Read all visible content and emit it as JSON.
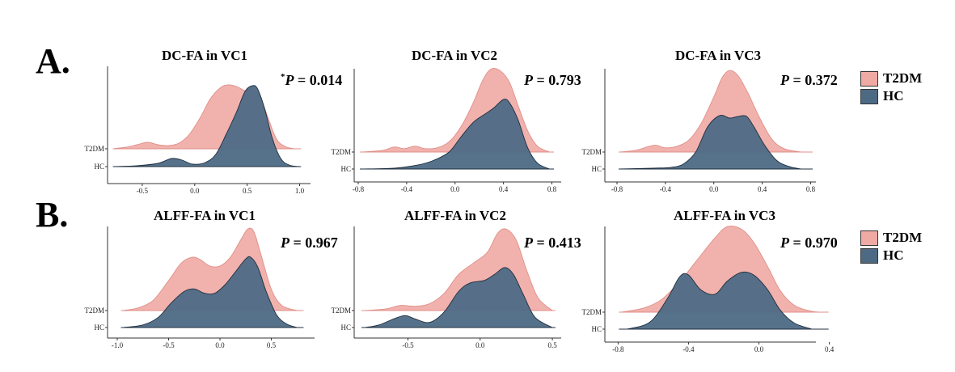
{
  "sections": [
    {
      "label": "A."
    },
    {
      "label": "B."
    }
  ],
  "legend": [
    {
      "label": "T2DM",
      "color": "#efaaa4"
    },
    {
      "label": "HC",
      "color": "#4d6a85"
    }
  ],
  "colors": {
    "t2dm": "#efaaa4",
    "hc": "#4d6a85"
  },
  "chart_data": [
    {
      "type": "ridgeline",
      "title": "DC-FA in VC1",
      "p_prefix": "*",
      "p_label": "P",
      "p_value": "= 0.014",
      "xlim": [
        -0.8,
        1.05
      ],
      "ticks": [
        -0.5,
        0.0,
        0.5,
        1.0
      ],
      "tick_labels": [
        "-0.5",
        "0.0",
        "0.5",
        "1.0"
      ],
      "y_labels": [
        "T2DM",
        "HC"
      ],
      "series": [
        {
          "name": "T2DM",
          "points": [
            [
              -0.78,
              0
            ],
            [
              -0.65,
              0.02
            ],
            [
              -0.55,
              0.05
            ],
            [
              -0.45,
              0.08
            ],
            [
              -0.35,
              0.05
            ],
            [
              -0.25,
              0.04
            ],
            [
              -0.15,
              0.07
            ],
            [
              -0.05,
              0.18
            ],
            [
              0.05,
              0.38
            ],
            [
              0.15,
              0.62
            ],
            [
              0.25,
              0.76
            ],
            [
              0.32,
              0.79
            ],
            [
              0.4,
              0.77
            ],
            [
              0.48,
              0.72
            ],
            [
              0.55,
              0.74
            ],
            [
              0.62,
              0.66
            ],
            [
              0.7,
              0.38
            ],
            [
              0.78,
              0.12
            ],
            [
              0.86,
              0.03
            ],
            [
              0.95,
              0
            ]
          ]
        },
        {
          "name": "HC",
          "points": [
            [
              -0.78,
              0
            ],
            [
              -0.55,
              0.01
            ],
            [
              -0.35,
              0.04
            ],
            [
              -0.22,
              0.1
            ],
            [
              -0.12,
              0.08
            ],
            [
              -0.02,
              0.03
            ],
            [
              0.1,
              0.05
            ],
            [
              0.2,
              0.15
            ],
            [
              0.3,
              0.4
            ],
            [
              0.4,
              0.68
            ],
            [
              0.48,
              0.93
            ],
            [
              0.55,
              1.0
            ],
            [
              0.6,
              0.96
            ],
            [
              0.67,
              0.7
            ],
            [
              0.74,
              0.35
            ],
            [
              0.82,
              0.1
            ],
            [
              0.9,
              0.02
            ],
            [
              1.0,
              0
            ]
          ]
        }
      ]
    },
    {
      "type": "ridgeline",
      "title": "DC-FA in VC2",
      "p_prefix": "",
      "p_label": "P",
      "p_value": "= 0.793",
      "xlim": [
        -0.82,
        0.85
      ],
      "ticks": [
        -0.8,
        -0.4,
        0.0,
        0.4,
        0.8
      ],
      "tick_labels": [
        "-0.8",
        "-0.4",
        "0.0",
        "0.4",
        "0.8"
      ],
      "y_labels": [
        "T2DM",
        "HC"
      ],
      "series": [
        {
          "name": "T2DM",
          "points": [
            [
              -0.78,
              0
            ],
            [
              -0.6,
              0.02
            ],
            [
              -0.5,
              0.06
            ],
            [
              -0.42,
              0.04
            ],
            [
              -0.33,
              0.07
            ],
            [
              -0.25,
              0.04
            ],
            [
              -0.15,
              0.05
            ],
            [
              -0.05,
              0.12
            ],
            [
              0.05,
              0.3
            ],
            [
              0.15,
              0.58
            ],
            [
              0.23,
              0.85
            ],
            [
              0.3,
              0.98
            ],
            [
              0.38,
              0.95
            ],
            [
              0.45,
              0.82
            ],
            [
              0.52,
              0.55
            ],
            [
              0.6,
              0.25
            ],
            [
              0.68,
              0.07
            ],
            [
              0.78,
              0
            ]
          ]
        },
        {
          "name": "HC",
          "points": [
            [
              -0.78,
              0
            ],
            [
              -0.5,
              0.01
            ],
            [
              -0.3,
              0.05
            ],
            [
              -0.18,
              0.1
            ],
            [
              -0.05,
              0.2
            ],
            [
              0.05,
              0.38
            ],
            [
              0.15,
              0.55
            ],
            [
              0.25,
              0.65
            ],
            [
              0.32,
              0.72
            ],
            [
              0.4,
              0.82
            ],
            [
              0.45,
              0.78
            ],
            [
              0.52,
              0.58
            ],
            [
              0.6,
              0.25
            ],
            [
              0.68,
              0.07
            ],
            [
              0.78,
              0
            ]
          ]
        }
      ]
    },
    {
      "type": "ridgeline",
      "title": "DC-FA in VC3",
      "p_prefix": "",
      "p_label": "P",
      "p_value": "= 0.372",
      "xlim": [
        -0.82,
        0.85
      ],
      "ticks": [
        -0.8,
        -0.4,
        0.0,
        0.4,
        0.8
      ],
      "tick_labels": [
        "-0.8",
        "-0.4",
        "0.0",
        "0.4",
        "0.8"
      ],
      "y_labels": [
        "T2DM",
        "HC"
      ],
      "series": [
        {
          "name": "T2DM",
          "points": [
            [
              -0.78,
              0
            ],
            [
              -0.65,
              0.02
            ],
            [
              -0.55,
              0.06
            ],
            [
              -0.48,
              0.08
            ],
            [
              -0.4,
              0.05
            ],
            [
              -0.3,
              0.07
            ],
            [
              -0.2,
              0.15
            ],
            [
              -0.1,
              0.35
            ],
            [
              0.0,
              0.65
            ],
            [
              0.07,
              0.88
            ],
            [
              0.13,
              0.96
            ],
            [
              0.2,
              0.9
            ],
            [
              0.28,
              0.7
            ],
            [
              0.38,
              0.4
            ],
            [
              0.48,
              0.15
            ],
            [
              0.58,
              0.04
            ],
            [
              0.72,
              0
            ]
          ]
        },
        {
          "name": "HC",
          "points": [
            [
              -0.78,
              0
            ],
            [
              -0.5,
              0.01
            ],
            [
              -0.35,
              0.02
            ],
            [
              -0.25,
              0.06
            ],
            [
              -0.15,
              0.2
            ],
            [
              -0.05,
              0.5
            ],
            [
              0.05,
              0.63
            ],
            [
              0.13,
              0.6
            ],
            [
              0.2,
              0.62
            ],
            [
              0.27,
              0.62
            ],
            [
              0.33,
              0.5
            ],
            [
              0.42,
              0.28
            ],
            [
              0.52,
              0.1
            ],
            [
              0.62,
              0.03
            ],
            [
              0.72,
              0
            ]
          ]
        }
      ]
    },
    {
      "type": "ridgeline",
      "title": "ALFF-FA in VC1",
      "p_prefix": "",
      "p_label": "P",
      "p_value": "= 0.967",
      "xlim": [
        -1.0,
        0.85
      ],
      "ticks": [
        -1.0,
        -0.5,
        0.0,
        0.5
      ],
      "tick_labels": [
        "-1.0",
        "-0.5",
        "0.0",
        "0.5"
      ],
      "y_labels": [
        "T2DM",
        "HC"
      ],
      "series": [
        {
          "name": "T2DM",
          "points": [
            [
              -0.95,
              0
            ],
            [
              -0.8,
              0.03
            ],
            [
              -0.65,
              0.12
            ],
            [
              -0.5,
              0.35
            ],
            [
              -0.38,
              0.55
            ],
            [
              -0.28,
              0.62
            ],
            [
              -0.2,
              0.6
            ],
            [
              -0.1,
              0.52
            ],
            [
              0.0,
              0.52
            ],
            [
              0.1,
              0.62
            ],
            [
              0.2,
              0.82
            ],
            [
              0.27,
              0.95
            ],
            [
              0.33,
              0.92
            ],
            [
              0.4,
              0.65
            ],
            [
              0.5,
              0.25
            ],
            [
              0.6,
              0.06
            ],
            [
              0.75,
              0
            ]
          ]
        },
        {
          "name": "HC",
          "points": [
            [
              -0.95,
              0
            ],
            [
              -0.75,
              0.03
            ],
            [
              -0.6,
              0.12
            ],
            [
              -0.48,
              0.28
            ],
            [
              -0.35,
              0.42
            ],
            [
              -0.25,
              0.45
            ],
            [
              -0.15,
              0.4
            ],
            [
              -0.05,
              0.4
            ],
            [
              0.05,
              0.5
            ],
            [
              0.15,
              0.65
            ],
            [
              0.25,
              0.8
            ],
            [
              0.3,
              0.82
            ],
            [
              0.37,
              0.7
            ],
            [
              0.45,
              0.42
            ],
            [
              0.55,
              0.15
            ],
            [
              0.65,
              0.04
            ],
            [
              0.75,
              0
            ]
          ]
        }
      ]
    },
    {
      "type": "ridgeline",
      "title": "ALFF-FA in VC2",
      "p_prefix": "",
      "p_label": "P",
      "p_value": "= 0.413",
      "xlim": [
        -0.85,
        0.55
      ],
      "ticks": [
        -0.5,
        0.0,
        0.5
      ],
      "tick_labels": [
        "-0.5",
        "0.0",
        "0.5"
      ],
      "y_labels": [
        "T2DM",
        "HC"
      ],
      "series": [
        {
          "name": "T2DM",
          "points": [
            [
              -0.8,
              0
            ],
            [
              -0.65,
              0.02
            ],
            [
              -0.55,
              0.06
            ],
            [
              -0.45,
              0.05
            ],
            [
              -0.35,
              0.08
            ],
            [
              -0.25,
              0.2
            ],
            [
              -0.15,
              0.42
            ],
            [
              -0.05,
              0.55
            ],
            [
              0.05,
              0.68
            ],
            [
              0.12,
              0.9
            ],
            [
              0.18,
              0.95
            ],
            [
              0.25,
              0.82
            ],
            [
              0.32,
              0.48
            ],
            [
              0.4,
              0.15
            ],
            [
              0.5,
              0
            ]
          ]
        },
        {
          "name": "HC",
          "points": [
            [
              -0.8,
              0
            ],
            [
              -0.7,
              0.03
            ],
            [
              -0.6,
              0.1
            ],
            [
              -0.52,
              0.14
            ],
            [
              -0.45,
              0.1
            ],
            [
              -0.35,
              0.06
            ],
            [
              -0.25,
              0.18
            ],
            [
              -0.15,
              0.42
            ],
            [
              -0.07,
              0.52
            ],
            [
              0.03,
              0.55
            ],
            [
              0.1,
              0.62
            ],
            [
              0.17,
              0.7
            ],
            [
              0.23,
              0.62
            ],
            [
              0.3,
              0.38
            ],
            [
              0.38,
              0.12
            ],
            [
              0.5,
              0
            ]
          ]
        }
      ]
    },
    {
      "type": "ridgeline",
      "title": "ALFF-FA in VC3",
      "p_prefix": "",
      "p_label": "P",
      "p_value": "= 0.970",
      "xlim": [
        -0.82,
        0.42
      ],
      "ticks": [
        -0.8,
        -0.4,
        0.0,
        0.4
      ],
      "tick_labels": [
        "-0.8",
        "-0.4",
        "0.0",
        "0.4"
      ],
      "y_labels": [
        "T2DM",
        "HC"
      ],
      "series": [
        {
          "name": "T2DM",
          "points": [
            [
              -0.78,
              0
            ],
            [
              -0.65,
              0.05
            ],
            [
              -0.55,
              0.15
            ],
            [
              -0.45,
              0.35
            ],
            [
              -0.35,
              0.6
            ],
            [
              -0.25,
              0.85
            ],
            [
              -0.18,
              0.98
            ],
            [
              -0.1,
              0.95
            ],
            [
              -0.03,
              0.8
            ],
            [
              0.05,
              0.52
            ],
            [
              0.12,
              0.25
            ],
            [
              0.2,
              0.08
            ],
            [
              0.3,
              0.01
            ],
            [
              0.38,
              0
            ]
          ]
        },
        {
          "name": "HC",
          "points": [
            [
              -0.75,
              0
            ],
            [
              -0.62,
              0.08
            ],
            [
              -0.52,
              0.35
            ],
            [
              -0.45,
              0.6
            ],
            [
              -0.4,
              0.62
            ],
            [
              -0.33,
              0.45
            ],
            [
              -0.25,
              0.4
            ],
            [
              -0.18,
              0.55
            ],
            [
              -0.1,
              0.65
            ],
            [
              -0.03,
              0.62
            ],
            [
              0.05,
              0.45
            ],
            [
              0.12,
              0.22
            ],
            [
              0.2,
              0.07
            ],
            [
              0.3,
              0
            ]
          ]
        }
      ]
    }
  ]
}
